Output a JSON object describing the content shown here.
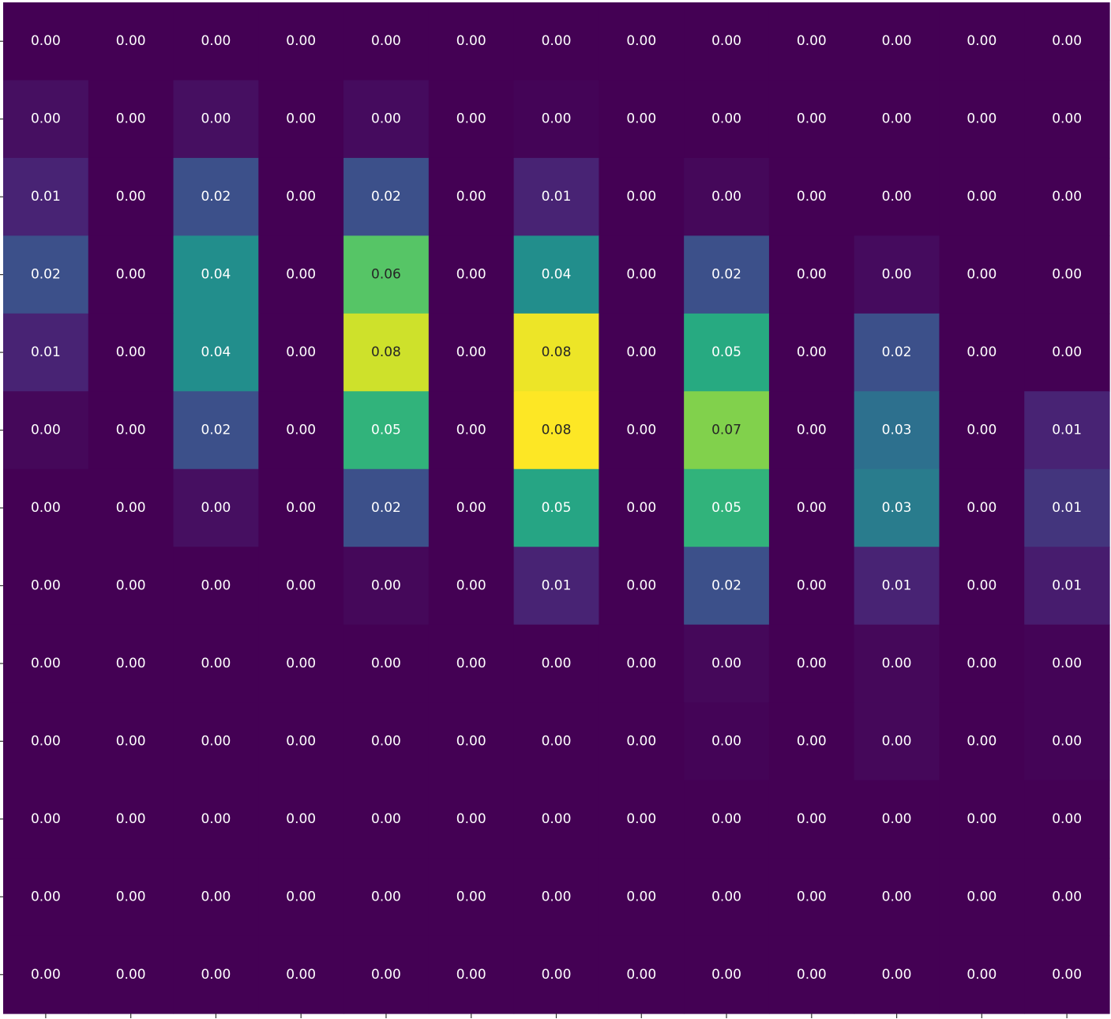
{
  "chart_data": {
    "type": "heatmap",
    "title": "",
    "xlabel": "",
    "ylabel": "",
    "colormap": "viridis",
    "value_range": [
      0,
      0.082
    ],
    "rows": 13,
    "cols": 13,
    "values": [
      [
        0.0,
        0.0,
        0.0,
        0.0,
        0.0,
        0.0,
        0.0,
        0.0,
        0.0,
        0.0,
        0.0,
        0.0,
        0.0
      ],
      [
        0.004,
        0.0,
        0.004,
        0.0,
        0.003,
        0.0,
        0.001,
        0.0,
        0.0,
        0.0,
        0.0,
        0.0,
        0.0
      ],
      [
        0.01,
        0.0,
        0.02,
        0.0,
        0.02,
        0.0,
        0.01,
        0.0,
        0.002,
        0.0,
        0.0,
        0.0,
        0.0
      ],
      [
        0.02,
        0.0,
        0.04,
        0.0,
        0.06,
        0.0,
        0.04,
        0.0,
        0.02,
        0.0,
        0.003,
        0.0,
        0.0
      ],
      [
        0.01,
        0.0,
        0.04,
        0.0,
        0.076,
        0.0,
        0.08,
        0.0,
        0.05,
        0.0,
        0.02,
        0.0,
        0.0
      ],
      [
        0.002,
        0.0,
        0.02,
        0.0,
        0.053,
        0.0,
        0.082,
        0.0,
        0.066,
        0.0,
        0.03,
        0.0,
        0.01
      ],
      [
        0.0,
        0.0,
        0.004,
        0.0,
        0.02,
        0.0,
        0.048,
        0.0,
        0.053,
        0.0,
        0.034,
        0.0,
        0.014
      ],
      [
        0.0,
        0.0,
        0.0,
        0.0,
        0.002,
        0.0,
        0.01,
        0.0,
        0.02,
        0.0,
        0.01,
        0.0,
        0.008
      ],
      [
        0.0,
        0.0,
        0.0,
        0.0,
        0.0,
        0.0,
        0.0,
        0.0,
        0.002,
        0.0,
        0.002,
        0.0,
        0.001
      ],
      [
        0.0,
        0.0,
        0.0,
        0.0,
        0.0,
        0.0,
        0.0,
        0.0,
        0.001,
        0.0,
        0.002,
        0.0,
        0.001
      ],
      [
        0.0,
        0.0,
        0.0,
        0.0,
        0.0,
        0.0,
        0.0,
        0.0,
        0.0,
        0.0,
        0.0,
        0.0,
        0.0
      ],
      [
        0.0,
        0.0,
        0.0,
        0.0,
        0.0,
        0.0,
        0.0,
        0.0,
        0.0,
        0.0,
        0.0,
        0.0,
        0.0
      ],
      [
        0.0,
        0.0,
        0.0,
        0.0,
        0.0,
        0.0,
        0.0,
        0.0,
        0.0,
        0.0,
        0.0,
        0.0,
        0.0
      ]
    ],
    "annotation_decimals": 2,
    "x_ticks_labeled": false,
    "y_ticks_labeled": false,
    "grid": false,
    "legend": "none",
    "colors": {
      "low": "#440154",
      "high": "#fde725",
      "label_light": "#ffffff",
      "label_dark": "#262626",
      "tick": "#333333"
    }
  }
}
